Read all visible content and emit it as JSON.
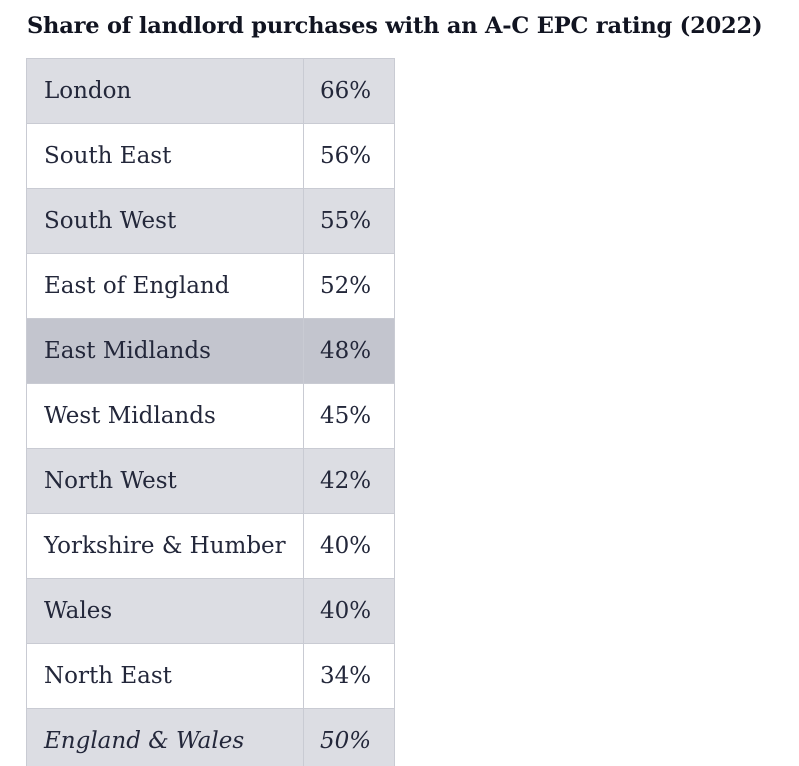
{
  "title": "Share of landlord purchases with an A-C EPC rating (2022)",
  "table": {
    "rows": [
      {
        "region": "London",
        "share": "66%"
      },
      {
        "region": "South East",
        "share": "56%"
      },
      {
        "region": "South West",
        "share": "55%"
      },
      {
        "region": "East of England",
        "share": "52%"
      },
      {
        "region": "East Midlands",
        "share": "48%"
      },
      {
        "region": "West Midlands",
        "share": "45%"
      },
      {
        "region": "North West",
        "share": "42%"
      },
      {
        "region": "Yorkshire & Humber",
        "share": "40%"
      },
      {
        "region": "Wales",
        "share": "40%"
      },
      {
        "region": "North East",
        "share": "34%"
      },
      {
        "region": "England & Wales",
        "share": "50%"
      }
    ]
  },
  "colors": {
    "stripe": "#dcdde3",
    "hover_highlight": "#c3c5ce",
    "border": "#c9cbd3",
    "text": "#23273a"
  }
}
